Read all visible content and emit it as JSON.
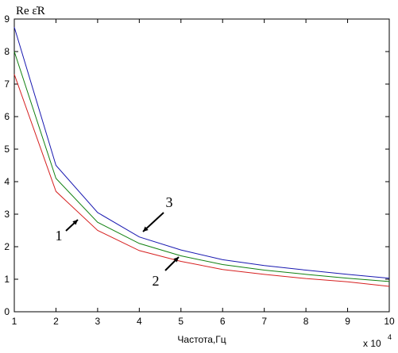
{
  "chart_data": {
    "type": "line",
    "ylabel": "Re ε̇R",
    "xlabel": "Частота,Гц",
    "x_multiplier": "x 10",
    "x_exponent": "4",
    "x": [
      1,
      2,
      3,
      4,
      5,
      6,
      7,
      8,
      9,
      10
    ],
    "series": [
      {
        "name": "1",
        "color": "#d62020",
        "values": [
          7.3,
          3.7,
          2.5,
          1.88,
          1.55,
          1.3,
          1.15,
          1.02,
          0.92,
          0.78
        ]
      },
      {
        "name": "2",
        "color": "#108010",
        "values": [
          8.0,
          4.1,
          2.75,
          2.1,
          1.72,
          1.45,
          1.28,
          1.15,
          1.03,
          0.93
        ]
      },
      {
        "name": "3",
        "color": "#1818b0",
        "values": [
          8.75,
          4.5,
          3.05,
          2.3,
          1.9,
          1.6,
          1.42,
          1.28,
          1.15,
          1.03
        ]
      }
    ],
    "xlim": [
      1,
      10
    ],
    "ylim": [
      0,
      9
    ],
    "xticks": [
      1,
      2,
      3,
      4,
      5,
      6,
      7,
      8,
      9,
      10
    ],
    "yticks": [
      0,
      1,
      2,
      3,
      4,
      5,
      6,
      7,
      8,
      9
    ],
    "grid": false
  }
}
